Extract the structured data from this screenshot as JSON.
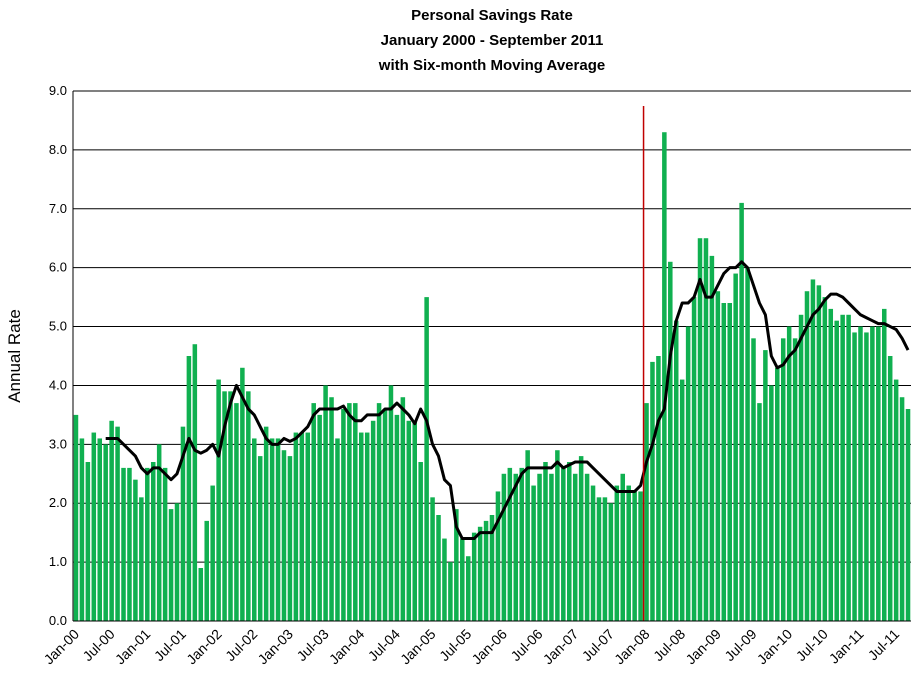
{
  "chart_data": {
    "type": "bar",
    "title": [
      "Personal Savings Rate",
      "January 2000 - September 2011",
      "with Six-month Moving Average"
    ],
    "y_label": "Annual Rate",
    "categories": [
      "Jan-00",
      null,
      null,
      null,
      null,
      null,
      "Jul-00",
      null,
      null,
      null,
      null,
      null,
      "Jan-01",
      null,
      null,
      null,
      null,
      null,
      "Jul-01",
      null,
      null,
      null,
      null,
      null,
      "Jan-02",
      null,
      null,
      null,
      null,
      null,
      "Jul-02",
      null,
      null,
      null,
      null,
      null,
      "Jan-03",
      null,
      null,
      null,
      null,
      null,
      "Jul-03",
      null,
      null,
      null,
      null,
      null,
      "Jan-04",
      null,
      null,
      null,
      null,
      null,
      "Jul-04",
      null,
      null,
      null,
      null,
      null,
      "Jan-05",
      null,
      null,
      null,
      null,
      null,
      "Jul-05",
      null,
      null,
      null,
      null,
      null,
      "Jan-06",
      null,
      null,
      null,
      null,
      null,
      "Jul-06",
      null,
      null,
      null,
      null,
      null,
      "Jan-07",
      null,
      null,
      null,
      null,
      null,
      "Jul-07",
      null,
      null,
      null,
      null,
      null,
      "Jan-08",
      null,
      null,
      null,
      null,
      null,
      "Jul-08",
      null,
      null,
      null,
      null,
      null,
      "Jan-09",
      null,
      null,
      null,
      null,
      null,
      "Jul-09",
      null,
      null,
      null,
      null,
      null,
      "Jan-10",
      null,
      null,
      null,
      null,
      null,
      "Jul-10",
      null,
      null,
      null,
      null,
      null,
      "Jan-11",
      null,
      null,
      null,
      null,
      null,
      "Jul-11",
      null,
      null
    ],
    "series": [
      {
        "type": "bar",
        "color": "#10b050",
        "values": [
          3.5,
          3.1,
          2.7,
          3.2,
          3.1,
          3.0,
          3.4,
          3.3,
          2.6,
          2.6,
          2.4,
          2.1,
          2.6,
          2.7,
          3.0,
          2.6,
          1.9,
          2.0,
          3.3,
          4.5,
          4.7,
          0.9,
          1.7,
          2.3,
          4.1,
          3.9,
          3.9,
          3.7,
          4.3,
          3.9,
          3.1,
          2.8,
          3.3,
          3.1,
          3.1,
          2.9,
          2.8,
          3.2,
          3.2,
          3.2,
          3.7,
          3.5,
          4.0,
          3.8,
          3.1,
          3.6,
          3.7,
          3.7,
          3.2,
          3.2,
          3.4,
          3.7,
          3.6,
          4.0,
          3.5,
          3.8,
          3.4,
          3.4,
          2.7,
          5.5,
          2.1,
          1.8,
          1.4,
          1.0,
          1.9,
          1.4,
          1.1,
          1.5,
          1.6,
          1.7,
          1.8,
          2.2,
          2.5,
          2.6,
          2.5,
          2.6,
          2.9,
          2.3,
          2.5,
          2.7,
          2.5,
          2.9,
          2.6,
          2.7,
          2.5,
          2.8,
          2.5,
          2.3,
          2.1,
          2.1,
          2.0,
          2.3,
          2.5,
          2.3,
          2.2,
          2.2,
          3.7,
          4.4,
          4.5,
          8.3,
          6.1,
          5.1,
          4.1,
          5.0,
          5.5,
          6.5,
          6.5,
          6.2,
          5.6,
          5.4,
          5.4,
          5.9,
          7.1,
          6.0,
          4.8,
          3.7,
          4.6,
          4.0,
          4.3,
          4.8,
          5.0,
          4.8,
          5.2,
          5.6,
          5.8,
          5.7,
          5.5,
          5.3,
          5.1,
          5.2,
          5.2,
          4.9,
          5.0,
          4.9,
          5.0,
          5.0,
          5.3,
          4.5,
          4.1,
          3.8,
          3.6
        ]
      },
      {
        "type": "line",
        "color": "#000000",
        "values": [
          null,
          null,
          null,
          null,
          null,
          3.1,
          3.1,
          3.1,
          3.0,
          2.9,
          2.8,
          2.6,
          2.5,
          2.6,
          2.6,
          2.5,
          2.4,
          2.5,
          2.8,
          3.1,
          2.9,
          2.85,
          2.9,
          3.0,
          2.8,
          3.3,
          3.7,
          4.0,
          3.8,
          3.6,
          3.5,
          3.3,
          3.1,
          3.0,
          3.0,
          3.1,
          3.05,
          3.1,
          3.2,
          3.3,
          3.5,
          3.6,
          3.6,
          3.6,
          3.6,
          3.65,
          3.5,
          3.4,
          3.4,
          3.5,
          3.5,
          3.5,
          3.6,
          3.6,
          3.7,
          3.6,
          3.5,
          3.35,
          3.6,
          3.4,
          3.0,
          2.8,
          2.4,
          2.3,
          1.6,
          1.4,
          1.4,
          1.4,
          1.5,
          1.5,
          1.5,
          1.7,
          1.9,
          2.1,
          2.3,
          2.5,
          2.6,
          2.6,
          2.6,
          2.6,
          2.6,
          2.7,
          2.6,
          2.65,
          2.7,
          2.7,
          2.7,
          2.6,
          2.5,
          2.4,
          2.3,
          2.2,
          2.2,
          2.2,
          2.2,
          2.3,
          2.7,
          3.0,
          3.4,
          3.6,
          4.5,
          5.1,
          5.4,
          5.4,
          5.5,
          5.8,
          5.5,
          5.5,
          5.7,
          5.9,
          6.0,
          6.0,
          6.1,
          6.0,
          5.7,
          5.4,
          5.2,
          4.5,
          4.3,
          4.35,
          4.5,
          4.6,
          4.8,
          5.0,
          5.2,
          5.3,
          5.45,
          5.55,
          5.55,
          5.5,
          5.4,
          5.3,
          5.2,
          5.15,
          5.1,
          5.05,
          5.05,
          5.0,
          4.95,
          4.8,
          4.6
        ]
      }
    ],
    "vline": {
      "x": 95,
      "color": "#c00000"
    },
    "ylim": [
      0,
      9
    ],
    "yticks": [
      {
        "value": 0,
        "label": "0.0"
      },
      {
        "value": 1,
        "label": "1.0"
      },
      {
        "value": 2,
        "label": "2.0"
      },
      {
        "value": 3,
        "label": "3.0"
      },
      {
        "value": 4,
        "label": "4.0"
      },
      {
        "value": 5,
        "label": "5.0"
      },
      {
        "value": 6,
        "label": "6.0"
      },
      {
        "value": 7,
        "label": "7.0"
      },
      {
        "value": 8,
        "label": "8.0"
      },
      {
        "value": 9,
        "label": "9.0"
      }
    ],
    "grid": true
  }
}
